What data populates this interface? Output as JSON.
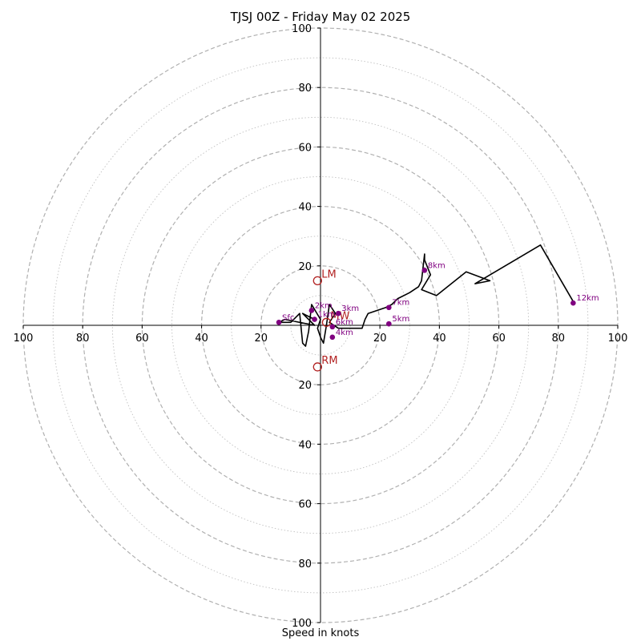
{
  "chart_data": {
    "type": "hodograph",
    "title": "TJSJ 00Z - Friday May 02 2025",
    "xlabel": "Speed in knots",
    "ylabel": "",
    "range": [
      -100,
      100
    ],
    "ring_major_step": 20,
    "ring_minor_step": 10,
    "tick_labels": {
      "x": [
        "100",
        "80",
        "60",
        "40",
        "20",
        "20",
        "40",
        "60",
        "80",
        "100"
      ],
      "y": [
        "100",
        "80",
        "60",
        "40",
        "20",
        "20",
        "40",
        "60",
        "80",
        "100"
      ]
    },
    "profile": [
      [
        -2,
        2
      ],
      [
        -6,
        4
      ],
      [
        -2,
        0
      ],
      [
        -12,
        2
      ],
      [
        -14,
        1
      ],
      [
        -10,
        1
      ],
      [
        -7,
        4
      ],
      [
        -6,
        -6
      ],
      [
        -5,
        -7
      ],
      [
        -4,
        -2
      ],
      [
        -3,
        7
      ],
      [
        0,
        2
      ],
      [
        -1,
        -1
      ],
      [
        0,
        -4
      ],
      [
        1,
        -6
      ],
      [
        2,
        0
      ],
      [
        3,
        7
      ],
      [
        5,
        4
      ],
      [
        3,
        1
      ],
      [
        6,
        -1
      ],
      [
        8,
        -1
      ],
      [
        14,
        -1
      ],
      [
        15,
        2
      ],
      [
        16,
        4
      ],
      [
        22,
        6
      ],
      [
        24,
        7
      ],
      [
        26,
        9
      ],
      [
        30,
        11
      ],
      [
        33,
        13
      ],
      [
        34,
        15
      ],
      [
        35,
        24
      ],
      [
        35,
        22
      ],
      [
        37,
        17
      ],
      [
        34,
        12
      ],
      [
        39,
        10
      ],
      [
        49,
        18
      ],
      [
        57,
        15
      ],
      [
        52,
        14
      ],
      [
        74,
        27
      ],
      [
        85,
        8
      ]
    ],
    "height_markers": [
      {
        "label": "Sfc",
        "u": -14,
        "v": 1
      },
      {
        "label": "1km",
        "u": -2,
        "v": 2
      },
      {
        "label": "2km",
        "u": -3,
        "v": 5
      },
      {
        "label": "3km",
        "u": 6,
        "v": 4
      },
      {
        "label": "4km",
        "u": 4,
        "v": -4
      },
      {
        "label": "5km",
        "u": 23,
        "v": 0.5
      },
      {
        "label": "6km",
        "u": 4,
        "v": -0.5
      },
      {
        "label": "7km",
        "u": 23,
        "v": 6
      },
      {
        "label": "8km",
        "u": 35,
        "v": 18.5
      },
      {
        "label": "12km",
        "u": 85,
        "v": 7.5
      }
    ],
    "motion_markers": [
      {
        "label": "LM",
        "u": -1,
        "v": 15
      },
      {
        "label": "RM",
        "u": -1,
        "v": -14
      },
      {
        "label": "MW",
        "u": 2,
        "v": 1
      }
    ],
    "colors": {
      "profile": "#000000",
      "marker": "#800080",
      "marker_label": "#800080",
      "motion": "#b22222",
      "ring": "#b0b0b0",
      "axis": "#000000"
    }
  }
}
